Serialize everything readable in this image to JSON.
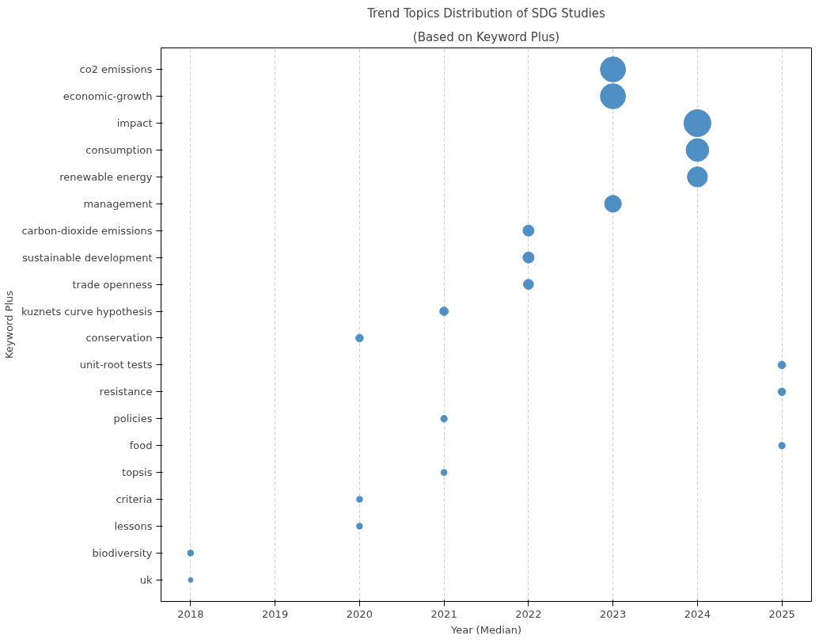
{
  "chart_data": {
    "type": "bubble",
    "orientation": "horizontal",
    "title": "Trend Topics Distribution of SDG Studies",
    "subtitle": "(Based on Keyword Plus)",
    "xlabel": "Year (Median)",
    "ylabel": "Keyword Plus",
    "categories": [
      "co2 emissions",
      "economic-growth",
      "impact",
      "consumption",
      "renewable energy",
      "management",
      "carbon-dioxide emissions",
      "sustainable development",
      "trade openness",
      "kuznets curve hypothesis",
      "conservation",
      "unit-root tests",
      "resistance",
      "policies",
      "food",
      "topsis",
      "criteria",
      "lessons",
      "biodiversity",
      "uk"
    ],
    "values": [
      2023,
      2023,
      2024,
      2024,
      2024,
      2023,
      2022,
      2022,
      2022,
      2021,
      2020,
      2025,
      2025,
      2021,
      2025,
      2021,
      2020,
      2020,
      2018,
      2018
    ],
    "sizes": [
      0.88,
      0.88,
      1,
      0.71,
      0.56,
      0.39,
      0.17,
      0.17,
      0.14,
      0.1,
      0.08,
      0.08,
      0.08,
      0.06,
      0.06,
      0.05,
      0.05,
      0.05,
      0.05,
      0.03
    ],
    "color": "#4f8fc4",
    "xlim": [
      2017.65,
      2025.35
    ],
    "xticks": [
      2018,
      2019,
      2020,
      2021,
      2022,
      2023,
      2024,
      2025
    ],
    "grid": "x"
  }
}
